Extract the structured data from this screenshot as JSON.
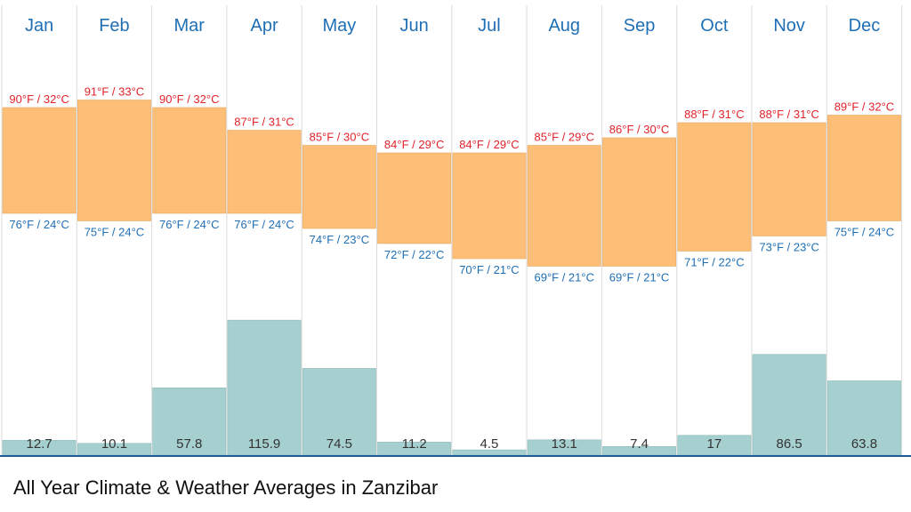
{
  "caption": "All Year Climate & Weather Averages in Zanzibar",
  "colors": {
    "temp_band": "#fdbf77",
    "rain_bar": "#a6d0cf",
    "grid": "#dcdcdc",
    "month_label": "#1f6fb5",
    "high_label": "#e0232a",
    "low_label": "#1f6fb5",
    "rain_label": "#333333",
    "baseline": "#1b5c9a"
  },
  "chart_data": {
    "type": "bar",
    "title": "All Year Climate & Weather Averages in Zanzibar",
    "categories": [
      "Jan",
      "Feb",
      "Mar",
      "Apr",
      "May",
      "Jun",
      "Jul",
      "Aug",
      "Sep",
      "Oct",
      "Nov",
      "Dec"
    ],
    "series": [
      {
        "values": [
          90,
          91,
          90,
          87,
          85,
          84,
          84,
          85,
          86,
          88,
          88,
          89
        ],
        "labels": [
          "90°F / 32°C",
          "91°F / 33°C",
          "90°F / 32°C",
          "87°F / 31°C",
          "85°F / 30°C",
          "84°F / 29°C",
          "84°F / 29°C",
          "85°F / 29°C",
          "86°F / 30°C",
          "88°F / 31°C",
          "88°F / 31°C",
          "89°F / 32°C"
        ]
      },
      {
        "values": [
          76,
          75,
          76,
          76,
          74,
          72,
          70,
          69,
          69,
          71,
          73,
          75
        ],
        "labels": [
          "76°F / 24°C",
          "75°F / 24°C",
          "76°F / 24°C",
          "76°F / 24°C",
          "74°F / 23°C",
          "72°F / 22°C",
          "70°F / 21°C",
          "69°F / 21°C",
          "69°F / 21°C",
          "71°F / 22°C",
          "73°F / 23°C",
          "75°F / 24°C"
        ]
      },
      {
        "values": [
          12.7,
          10.1,
          57.8,
          115.9,
          74.5,
          11.2,
          4.5,
          13.1,
          7.4,
          17,
          86.5,
          63.8
        ],
        "labels": [
          "12.7",
          "10.1",
          "57.8",
          "115.9",
          "74.5",
          "11.2",
          "4.5",
          "13.1",
          "7.4",
          "17",
          "86.5",
          "63.8"
        ]
      }
    ],
    "temp_range_f": [
      60,
      100
    ],
    "rain_range": [
      0,
      200
    ]
  }
}
